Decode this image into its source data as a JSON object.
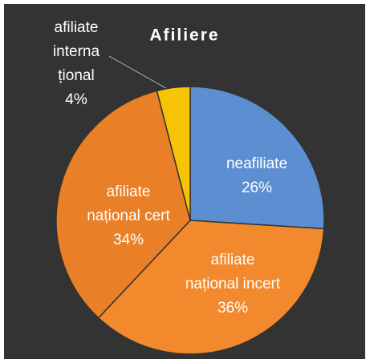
{
  "chart_data": {
    "type": "pie",
    "title": "Afiliere",
    "categories": [
      [
        "neafiliate"
      ],
      [
        "afiliate",
        "național incert"
      ],
      [
        "afiliate",
        "național cert"
      ],
      [
        "afiliate",
        "interna",
        "țional"
      ]
    ],
    "values": [
      26,
      36,
      34,
      4
    ],
    "value_labels": [
      "26%",
      "36%",
      "34%",
      "4%"
    ],
    "colors": [
      "#5b8fd2",
      "#f2892c",
      "#e97f26",
      "#f6c404"
    ]
  }
}
